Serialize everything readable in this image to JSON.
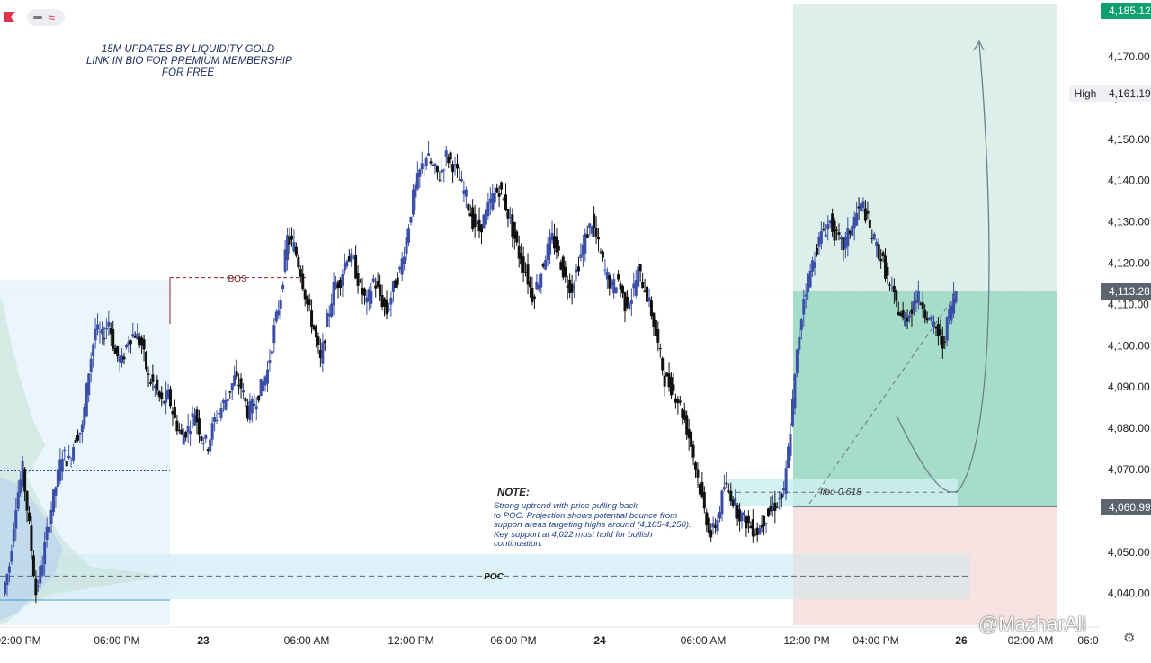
{
  "header": {
    "lines": [
      "15M UPDATES BY LIQUIDITY GOLD",
      "LINK IN BIO FOR PREMIUM MEMBERSHIP",
      "FOR FREE"
    ]
  },
  "toolbar": {
    "logo_icon": "tradingview-flag-icon",
    "collapse_icon": "minus-icon",
    "indicator_icon": "wave-icon"
  },
  "price_tags": {
    "top": "4,185.12",
    "high_label": "High",
    "high": "4,161.19",
    "current": "4,113.28",
    "entry": "4,060.99"
  },
  "annotations": {
    "bos": "BOS",
    "poc": "POC",
    "fibo": "fibo 0.618",
    "note_title": "NOTE:",
    "note_lines": [
      "Strong uptrend with price pulling back",
      "to POC. Projection shows potential bounce from",
      "support areas targeting highs around (4,185-4,250).",
      "Key support at 4,022 must hold for bullish",
      "continuation."
    ]
  },
  "watermark": "@MazharAli",
  "colors": {
    "bull": "#3b4fa8",
    "bear": "#111111",
    "target_zone": "#d9eee9",
    "target_zone_lower": "#9fd8c5",
    "stop_zone": "#f7e3e3",
    "poc_zone": "#dff3f9",
    "tag_blue": "#1f2a44",
    "tag_green": "#0e9f6e",
    "tag_gray": "#5d6470"
  },
  "chart_data": {
    "type": "candlestick",
    "title": "",
    "y_axis": {
      "ticks": [
        "4,170.00",
        "4,160.00",
        "4,150.00",
        "4,140.00",
        "4,130.00",
        "4,120.00",
        "4,110.00",
        "4,100.00",
        "4,090.00",
        "4,080.00",
        "4,070.00",
        "4,060.00",
        "4,050.00",
        "4,040.00"
      ],
      "ylim": [
        4036,
        4186
      ]
    },
    "x_axis": {
      "ticks": [
        "02:00 PM",
        "06:00 PM",
        "23",
        "06:00 AM",
        "12:00 PM",
        "06:00 PM",
        "24",
        "06:00 AM",
        "12:00 PM",
        "04:00 PM",
        "26",
        "02:00 AM",
        "06:0"
      ],
      "bold_ticks": [
        "23",
        "24",
        "26"
      ]
    },
    "close_path": [
      4040,
      4047,
      4062,
      4070,
      4056,
      4040,
      4048,
      4058,
      4066,
      4074,
      4072,
      4078,
      4080,
      4094,
      4104,
      4102,
      4106,
      4098,
      4096,
      4102,
      4103,
      4100,
      4092,
      4090,
      4086,
      4088,
      4082,
      4078,
      4080,
      4084,
      4078,
      4076,
      4082,
      4085,
      4088,
      4092,
      4090,
      4084,
      4086,
      4090,
      4094,
      4104,
      4112,
      4126,
      4124,
      4118,
      4110,
      4104,
      4096,
      4106,
      4114,
      4116,
      4122,
      4120,
      4114,
      4110,
      4116,
      4112,
      4108,
      4114,
      4118,
      4126,
      4136,
      4142,
      4146,
      4143,
      4141,
      4146,
      4144,
      4140,
      4136,
      4130,
      4128,
      4132,
      4136,
      4138,
      4134,
      4128,
      4122,
      4118,
      4112,
      4116,
      4122,
      4126,
      4122,
      4116,
      4114,
      4120,
      4126,
      4130,
      4124,
      4118,
      4114,
      4116,
      4110,
      4112,
      4118,
      4114,
      4108,
      4100,
      4092,
      4090,
      4087,
      4082,
      4076,
      4068,
      4060,
      4054,
      4058,
      4066,
      4064,
      4060,
      4058,
      4056,
      4055,
      4058,
      4060,
      4062,
      4064,
      4080,
      4098,
      4112,
      4118,
      4124,
      4128,
      4130,
      4126,
      4124,
      4128,
      4132,
      4134,
      4128,
      4124,
      4120,
      4114,
      4110,
      4106,
      4108,
      4112,
      4110,
      4106,
      4104,
      4100,
      4108,
      4113.28
    ],
    "levels": {
      "high": 4161.19,
      "current": 4113.28,
      "entry": 4060.99,
      "target": 4185.12,
      "bos": 4116.5,
      "poc": 4044.2,
      "fibo_0618": 4064.5
    },
    "zones": {
      "target": [
        4060.99,
        4185.12
      ],
      "stop": [
        4035,
        4060.99
      ],
      "poc_band": [
        4039,
        4049
      ],
      "fibo_band": [
        4061.5,
        4067.5
      ]
    }
  }
}
